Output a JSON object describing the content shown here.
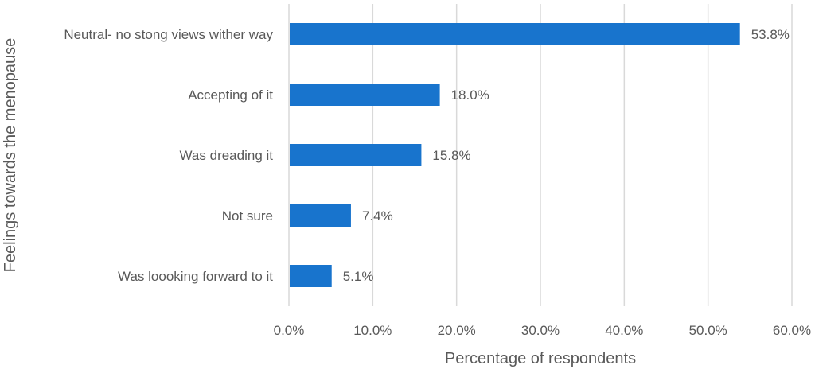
{
  "chart_data": {
    "type": "bar",
    "orientation": "horizontal",
    "categories": [
      "Neutral- no stong views wither way",
      "Accepting of it",
      "Was dreading it",
      "Not sure",
      "Was loooking forward to it"
    ],
    "values": [
      53.8,
      18.0,
      15.8,
      7.4,
      5.1
    ],
    "data_labels": [
      "53.8%",
      "18.0%",
      "15.8%",
      "7.4%",
      "5.1%"
    ],
    "xlabel": "Percentage of respondents",
    "ylabel": "Feelings towards the menopause",
    "xlim": [
      0,
      60
    ],
    "x_ticks": [
      0,
      10,
      20,
      30,
      40,
      50,
      60
    ],
    "x_tick_labels": [
      "0.0%",
      "10.0%",
      "20.0%",
      "30.0%",
      "40.0%",
      "50.0%",
      "60.0%"
    ],
    "grid": true,
    "bar_color": "#1874cd"
  }
}
